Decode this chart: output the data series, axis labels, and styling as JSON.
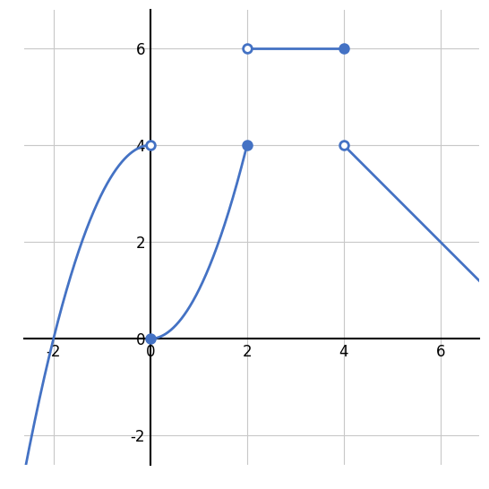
{
  "title": "",
  "xlim": [
    -2.6,
    6.8
  ],
  "ylim": [
    -2.6,
    6.8
  ],
  "xticks": [
    -2,
    0,
    2,
    4,
    6
  ],
  "yticks": [
    -2,
    0,
    2,
    4,
    6
  ],
  "line_color": "#4472C4",
  "line_width": 2.0,
  "bg_color": "#ffffff",
  "grid_color": "#c8c8c8",
  "seg1_x_start": -2.6,
  "seg1_x_end": 0.0,
  "seg2_x_start": 0.0,
  "seg2_x_end": 2.0,
  "seg3_x_start": 2.0,
  "seg3_x_end": 4.0,
  "seg3_y": 6.0,
  "seg4_x_start": 4.0,
  "seg4_x_end": 6.9,
  "dot_size": 7
}
